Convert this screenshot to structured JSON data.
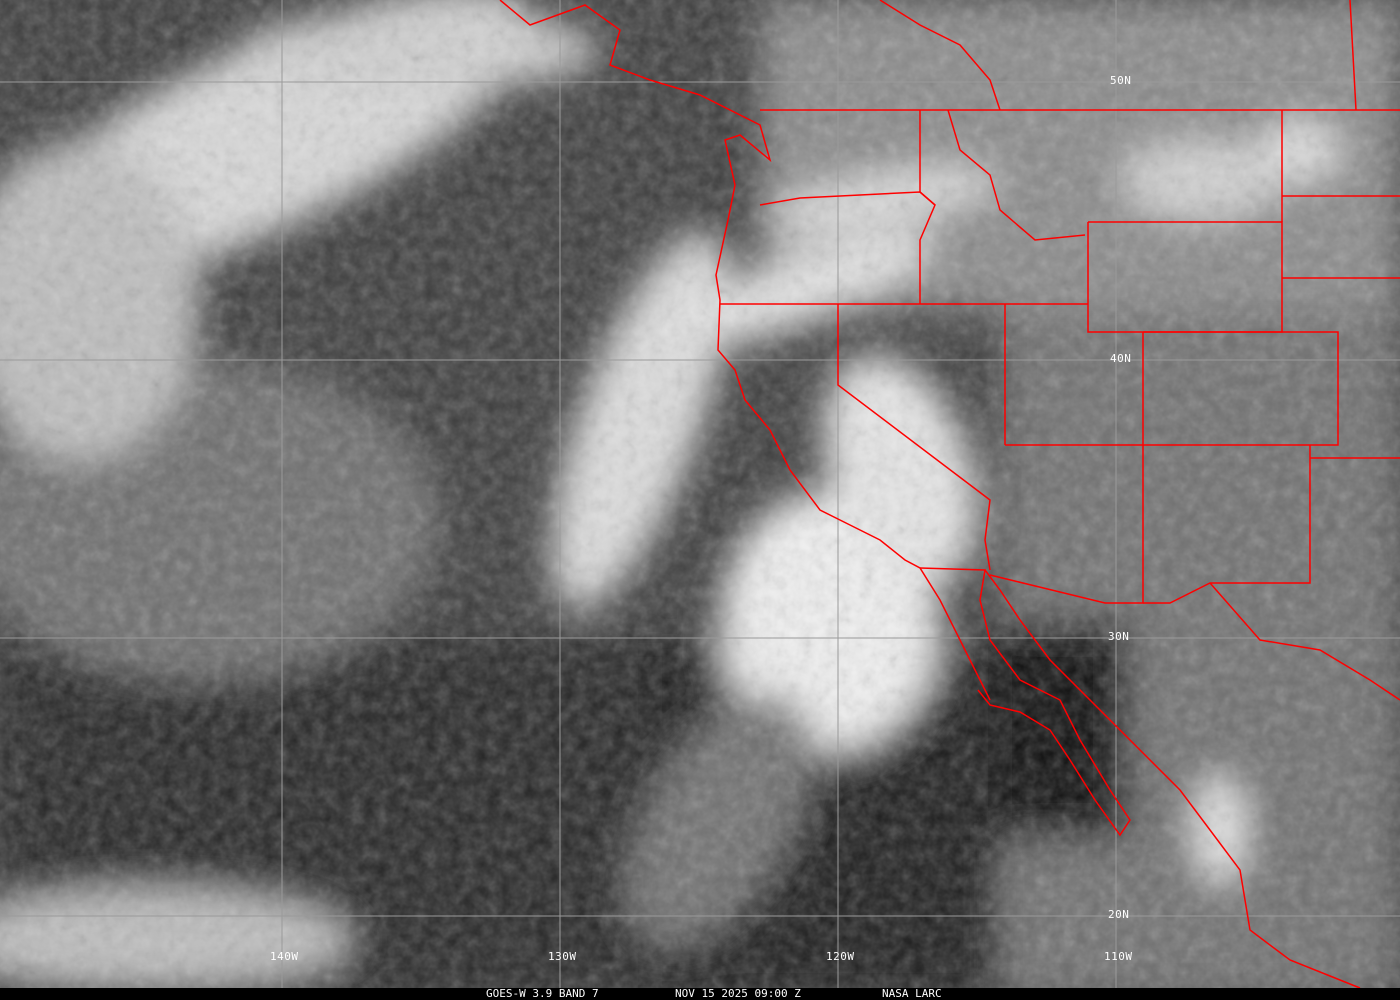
{
  "image": {
    "satellite": "GOES-W",
    "band_label": "GOES-W 3.9 BAND 7",
    "datetime": "NOV 15 2025 09:00 Z",
    "credit": "NASA LARC",
    "border_color": "#ff0000",
    "grid_color": "#9a9a9a"
  },
  "grid": {
    "longitudes": [
      "140W",
      "130W",
      "120W",
      "110W"
    ],
    "latitudes": [
      "50N",
      "40N",
      "30N",
      "20N"
    ]
  }
}
